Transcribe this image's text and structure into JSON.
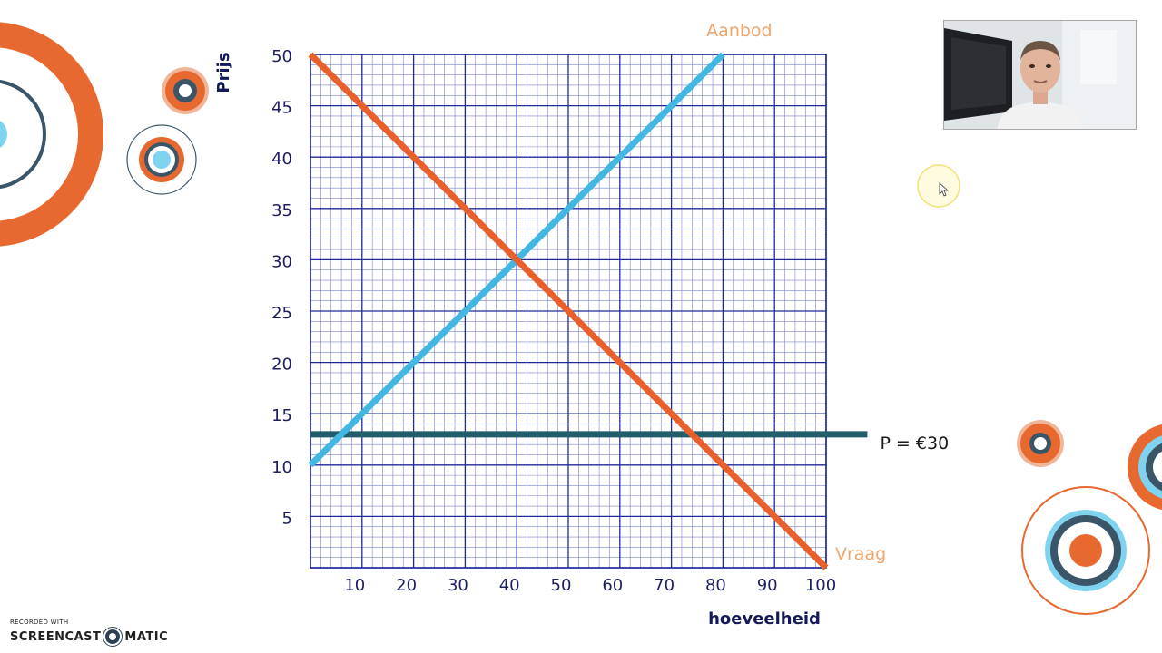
{
  "chart_data": {
    "type": "line",
    "xlabel": "hoeveelheid",
    "ylabel": "Prijs",
    "x_ticks": [
      10,
      20,
      30,
      40,
      50,
      60,
      70,
      80,
      90,
      100
    ],
    "y_ticks": [
      5,
      10,
      15,
      20,
      25,
      30,
      35,
      40,
      45,
      50
    ],
    "xlim": [
      0,
      100
    ],
    "ylim": [
      0,
      50
    ],
    "grid": true,
    "series": [
      {
        "name": "Aanbod",
        "x": [
          0,
          80
        ],
        "y": [
          10,
          50
        ],
        "color": "#41b7e1"
      },
      {
        "name": "Vraag",
        "x": [
          0,
          100
        ],
        "y": [
          50,
          0
        ],
        "color": "#e8602c"
      }
    ],
    "annotations": [
      {
        "text": "P = €30",
        "y": 13,
        "x_start": 0,
        "x_end": 108,
        "color": "#215d6b"
      }
    ]
  },
  "webcam": {
    "description": "presenter webcam"
  },
  "watermark": {
    "top": "RECORDED WITH",
    "left": "SCREENCAST",
    "right": "MATIC"
  },
  "colors": {
    "orange": "#e8692f",
    "dark_slate": "#3b5568",
    "light_blue": "#7fd3ef",
    "grid_major": "#1f2a99",
    "grid_minor": "#7b83c6"
  }
}
